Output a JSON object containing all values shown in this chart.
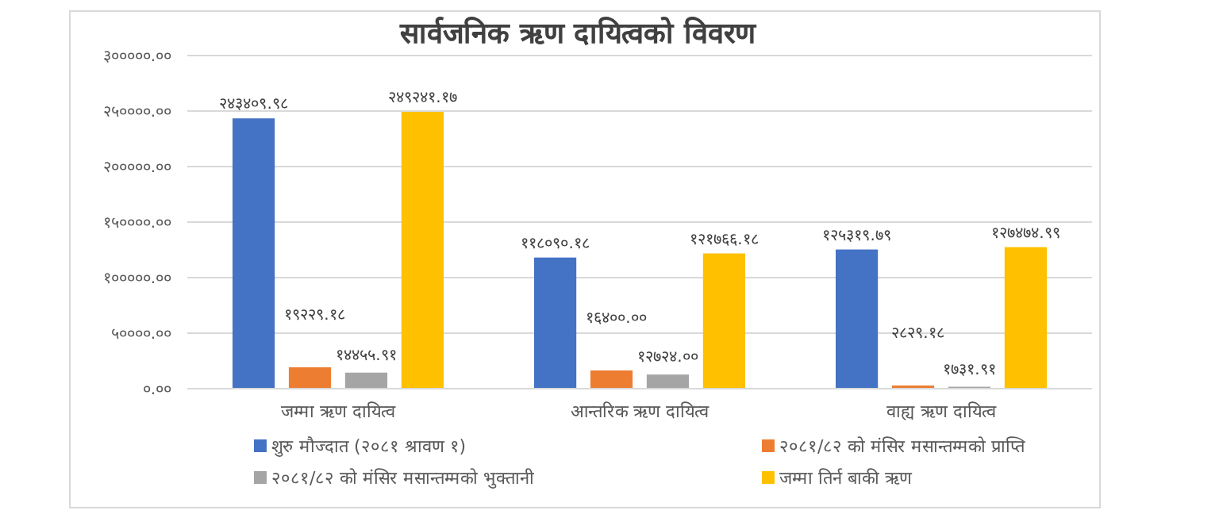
{
  "chart_data": {
    "type": "bar",
    "title": "सार्वजनिक ऋण दायित्वको विवरण",
    "categories": [
      "जम्मा ऋण दायित्व",
      "आन्तरिक ऋण दायित्व",
      "वाह्य ऋण दायित्व"
    ],
    "series": [
      {
        "name": "शुरु मौज्दात (२०८१ श्रावण १)",
        "color": "#4472c4",
        "values": [
          243409.98,
          118090.18,
          125319.79
        ],
        "value_labels": [
          "२४३४०९.९८",
          "११८०९०.१८",
          "१२५३१९.७९"
        ]
      },
      {
        "name": "२०८१/८२ को मंसिर मसान्तम्मको प्राप्ति",
        "color": "#ed7d31",
        "values": [
          19229.18,
          16400.0,
          2829.18
        ],
        "value_labels": [
          "१९२२९.१८",
          "१६४००.००",
          "२८२९.१८"
        ]
      },
      {
        "name": "२०८१/८२ को मंसिर मसान्तम्मको भुक्तानी",
        "color": "#a5a5a5",
        "values": [
          14455.91,
          12724.0,
          1731.91
        ],
        "value_labels": [
          "१४४५५.९१",
          "१२७२४.००",
          "१७३१.९१"
        ]
      },
      {
        "name": "जम्मा तिर्न बाकी ऋण",
        "color": "#ffc000",
        "values": [
          249241.17,
          121766.18,
          127474.99
        ],
        "value_labels": [
          "२४९२४१.१७",
          "१२१७६६.१८",
          "१२७४७४.९९"
        ]
      }
    ],
    "ylim": [
      0,
      300000
    ],
    "yticks": [
      {
        "value": 0,
        "label": "०.००"
      },
      {
        "value": 50000,
        "label": "५००००.००"
      },
      {
        "value": 100000,
        "label": "१०००००.००"
      },
      {
        "value": 150000,
        "label": "१५००००.००"
      },
      {
        "value": 200000,
        "label": "२०००००.००"
      },
      {
        "value": 250000,
        "label": "२५००००.००"
      },
      {
        "value": 300000,
        "label": "३०००००.००"
      }
    ],
    "grid": "y",
    "legend": "bottom"
  }
}
